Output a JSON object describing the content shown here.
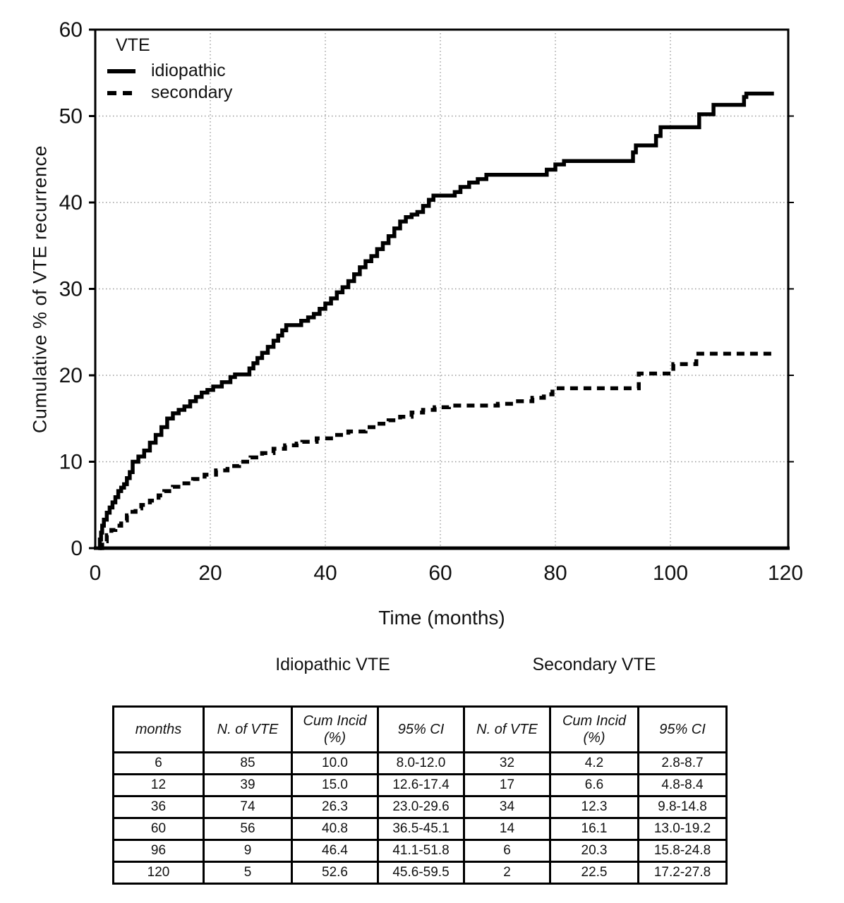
{
  "colors": {
    "line": "#000000",
    "grid": "#9a9a9a",
    "background": "#ffffff",
    "text": "#111111"
  },
  "figure": {
    "legend": {
      "title": "VTE",
      "items": [
        {
          "label": "idiopathic",
          "style": "solid"
        },
        {
          "label": "secondary",
          "style": "dashed"
        }
      ]
    }
  },
  "chart_data": {
    "type": "line",
    "subtype": "kaplan-meier-step",
    "title": "",
    "xlabel": "Time (months)",
    "ylabel": "Cumulative % of VTE recurrence",
    "xlim": [
      0,
      120
    ],
    "ylim": [
      0,
      60
    ],
    "x_ticks": [
      0,
      20,
      40,
      60,
      80,
      100,
      120
    ],
    "y_ticks": [
      0,
      10,
      20,
      30,
      40,
      50,
      60
    ],
    "grid_x": [
      20,
      40,
      60,
      80,
      100
    ],
    "grid_y": [
      10,
      20,
      30,
      40,
      50
    ],
    "grid": true,
    "legend_position": "top-left",
    "series": [
      {
        "name": "idiopathic",
        "line": "solid",
        "color": "#000000",
        "end_month": 118,
        "step_points": [
          [
            0.5,
            0
          ],
          [
            0.8,
            1.0
          ],
          [
            1.0,
            1.8
          ],
          [
            1.2,
            2.6
          ],
          [
            1.5,
            3.3
          ],
          [
            2.0,
            4.1
          ],
          [
            2.5,
            4.7
          ],
          [
            3.0,
            5.3
          ],
          [
            3.5,
            5.9
          ],
          [
            4.0,
            6.6
          ],
          [
            4.5,
            7.0
          ],
          [
            5.0,
            7.4
          ],
          [
            5.5,
            8.1
          ],
          [
            6.0,
            8.8
          ],
          [
            6.5,
            10.0
          ],
          [
            7.5,
            10.6
          ],
          [
            8.5,
            11.3
          ],
          [
            9.5,
            12.2
          ],
          [
            10.5,
            13.1
          ],
          [
            11.5,
            14.0
          ],
          [
            12.5,
            15.0
          ],
          [
            13.5,
            15.6
          ],
          [
            14.5,
            16.0
          ],
          [
            15.5,
            16.4
          ],
          [
            16.5,
            17.0
          ],
          [
            17.5,
            17.5
          ],
          [
            18.5,
            18.0
          ],
          [
            19.5,
            18.3
          ],
          [
            20.5,
            18.7
          ],
          [
            22.0,
            19.2
          ],
          [
            23.5,
            19.8
          ],
          [
            24.3,
            20.1
          ],
          [
            26.8,
            20.8
          ],
          [
            27.5,
            21.4
          ],
          [
            28.2,
            22.0
          ],
          [
            29.0,
            22.6
          ],
          [
            30.0,
            23.3
          ],
          [
            31.0,
            24.0
          ],
          [
            31.8,
            24.6
          ],
          [
            32.5,
            25.2
          ],
          [
            33.2,
            25.8
          ],
          [
            35.8,
            26.3
          ],
          [
            37.0,
            26.7
          ],
          [
            38.0,
            27.1
          ],
          [
            39.0,
            27.7
          ],
          [
            40.0,
            28.3
          ],
          [
            41.0,
            28.9
          ],
          [
            42.0,
            29.6
          ],
          [
            43.0,
            30.2
          ],
          [
            44.0,
            30.9
          ],
          [
            45.0,
            31.7
          ],
          [
            46.0,
            32.5
          ],
          [
            47.0,
            33.2
          ],
          [
            48.0,
            33.8
          ],
          [
            49.0,
            34.6
          ],
          [
            50.0,
            35.3
          ],
          [
            51.0,
            36.1
          ],
          [
            52.0,
            37.0
          ],
          [
            53.0,
            37.8
          ],
          [
            54.0,
            38.3
          ],
          [
            55.0,
            38.6
          ],
          [
            56.0,
            38.9
          ],
          [
            57.0,
            39.6
          ],
          [
            58.0,
            40.3
          ],
          [
            58.8,
            40.8
          ],
          [
            62.5,
            41.2
          ],
          [
            63.5,
            41.8
          ],
          [
            65.0,
            42.3
          ],
          [
            66.5,
            42.7
          ],
          [
            68.0,
            43.2
          ],
          [
            78.5,
            43.8
          ],
          [
            80.0,
            44.4
          ],
          [
            81.5,
            44.8
          ],
          [
            93.5,
            45.8
          ],
          [
            94.0,
            46.6
          ],
          [
            97.5,
            47.7
          ],
          [
            98.3,
            48.7
          ],
          [
            105.0,
            50.2
          ],
          [
            107.5,
            51.3
          ],
          [
            112.8,
            52.2
          ],
          [
            113.2,
            52.6
          ]
        ],
        "table_anchors": [
          [
            6,
            10.0
          ],
          [
            12,
            15.0
          ],
          [
            36,
            26.3
          ],
          [
            60,
            40.8
          ],
          [
            96,
            46.4
          ],
          [
            120,
            52.6
          ]
        ]
      },
      {
        "name": "secondary",
        "line": "dashed",
        "color": "#000000",
        "end_month": 118,
        "step_points": [
          [
            0.8,
            0
          ],
          [
            1.2,
            0.8
          ],
          [
            2.0,
            1.5
          ],
          [
            2.8,
            2.1
          ],
          [
            3.5,
            2.6
          ],
          [
            4.5,
            3.2
          ],
          [
            5.5,
            3.8
          ],
          [
            6.0,
            4.2
          ],
          [
            7.0,
            4.6
          ],
          [
            8.0,
            5.0
          ],
          [
            9.5,
            5.5
          ],
          [
            11.0,
            6.1
          ],
          [
            12.0,
            6.6
          ],
          [
            13.5,
            7.1
          ],
          [
            15.0,
            7.5
          ],
          [
            17.0,
            8.0
          ],
          [
            19.0,
            8.5
          ],
          [
            21.0,
            9.0
          ],
          [
            23.0,
            9.5
          ],
          [
            25.0,
            10.0
          ],
          [
            27.0,
            10.5
          ],
          [
            29.0,
            11.0
          ],
          [
            31.0,
            11.5
          ],
          [
            33.0,
            11.9
          ],
          [
            35.0,
            12.1
          ],
          [
            36.0,
            12.3
          ],
          [
            38.5,
            12.7
          ],
          [
            41.0,
            13.1
          ],
          [
            44.0,
            13.5
          ],
          [
            47.0,
            14.0
          ],
          [
            49.0,
            14.4
          ],
          [
            51.0,
            14.8
          ],
          [
            53.0,
            15.2
          ],
          [
            55.0,
            15.7
          ],
          [
            57.0,
            16.0
          ],
          [
            59.0,
            16.3
          ],
          [
            61.5,
            16.5
          ],
          [
            70.0,
            16.7
          ],
          [
            73.0,
            17.0
          ],
          [
            76.0,
            17.4
          ],
          [
            78.0,
            17.8
          ],
          [
            79.5,
            18.5
          ],
          [
            94.5,
            20.2
          ],
          [
            100.5,
            21.3
          ],
          [
            104.5,
            22.5
          ]
        ],
        "table_anchors": [
          [
            6,
            4.2
          ],
          [
            12,
            6.6
          ],
          [
            36,
            12.3
          ],
          [
            60,
            16.1
          ],
          [
            96,
            20.3
          ],
          [
            120,
            22.5
          ]
        ]
      }
    ]
  },
  "table": {
    "group_headers": [
      "Idiopathic VTE",
      "Secondary VTE"
    ],
    "columns": [
      "months",
      "N. of  VTE",
      "Cum Incid\n(%)",
      "95% CI",
      "N. of  VTE",
      "Cum Incid\n(%)",
      "95% CI"
    ],
    "rows": [
      [
        "6",
        "85",
        "10.0",
        "8.0-12.0",
        "32",
        "4.2",
        "2.8-8.7"
      ],
      [
        "12",
        "39",
        "15.0",
        "12.6-17.4",
        "17",
        "6.6",
        "4.8-8.4"
      ],
      [
        "36",
        "74",
        "26.3",
        "23.0-29.6",
        "34",
        "12.3",
        "9.8-14.8"
      ],
      [
        "60",
        "56",
        "40.8",
        "36.5-45.1",
        "14",
        "16.1",
        "13.0-19.2"
      ],
      [
        "96",
        "9",
        "46.4",
        "41.1-51.8",
        "6",
        "20.3",
        "15.8-24.8"
      ],
      [
        "120",
        "5",
        "52.6",
        "45.6-59.5",
        "2",
        "22.5",
        "17.2-27.8"
      ]
    ]
  }
}
